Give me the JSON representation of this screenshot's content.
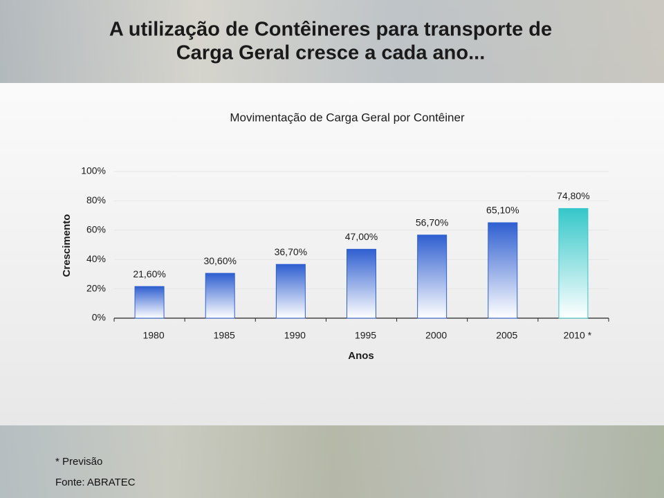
{
  "header": {
    "title_line1": "A utilização de Contêineres para transporte de",
    "title_line2": "Carga Geral cresce a cada ano..."
  },
  "chart_data": {
    "type": "bar",
    "title": "Movimentação de Carga Geral por Contêiner",
    "y_label": "Crescimento",
    "x_label": "Anos",
    "categories": [
      "1980",
      "1985",
      "1990",
      "1995",
      "2000",
      "2005",
      "2010 *"
    ],
    "values": [
      21.6,
      30.6,
      36.7,
      47.0,
      56.7,
      65.1,
      74.8
    ],
    "value_labels": [
      "21,60%",
      "30,60%",
      "36,70%",
      "47,00%",
      "56,70%",
      "65,10%",
      "74,80%"
    ],
    "colors": [
      "#2f5fd0",
      "#2f5fd0",
      "#2f5fd0",
      "#2f5fd0",
      "#2f5fd0",
      "#2f5fd0",
      "#35c7c9"
    ],
    "ylim": [
      0,
      100
    ],
    "yticks": [
      {
        "value": 0,
        "label": "0%"
      },
      {
        "value": 20,
        "label": "20%"
      },
      {
        "value": 40,
        "label": "40%"
      },
      {
        "value": 60,
        "label": "60%"
      },
      {
        "value": 80,
        "label": "80%"
      },
      {
        "value": 100,
        "label": "100%"
      }
    ],
    "grid": true
  },
  "footer": {
    "note": "* Previsão",
    "source": "Fonte: ABRATEC"
  }
}
